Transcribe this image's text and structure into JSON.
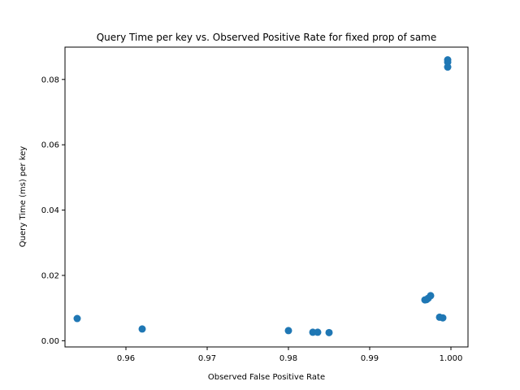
{
  "chart_data": {
    "type": "scatter",
    "title": "Query Time per key vs. Observed Positive Rate for fixed prop of same",
    "xlabel": "Observed False Positive Rate",
    "ylabel": "Query Time (ms) per key",
    "xlim": [
      0.9525,
      1.0021
    ],
    "ylim": [
      -0.0019,
      0.0899
    ],
    "xticks": [
      0.96,
      0.97,
      0.98,
      0.99,
      1.0
    ],
    "xtick_labels": [
      "0.96",
      "0.97",
      "0.98",
      "0.99",
      "1.000"
    ],
    "yticks": [
      0.0,
      0.02,
      0.04,
      0.06,
      0.08
    ],
    "ytick_labels": [
      "0.00",
      "0.02",
      "0.04",
      "0.06",
      "0.08"
    ],
    "grid": false,
    "legend": "none",
    "color": "#1f77b4",
    "points": [
      {
        "x": 0.954,
        "y": 0.0068
      },
      {
        "x": 0.962,
        "y": 0.0036
      },
      {
        "x": 0.98,
        "y": 0.0031
      },
      {
        "x": 0.983,
        "y": 0.0026
      },
      {
        "x": 0.9836,
        "y": 0.0026
      },
      {
        "x": 0.985,
        "y": 0.0025
      },
      {
        "x": 0.9968,
        "y": 0.0125
      },
      {
        "x": 0.997,
        "y": 0.0126
      },
      {
        "x": 0.9972,
        "y": 0.013
      },
      {
        "x": 0.9975,
        "y": 0.0138
      },
      {
        "x": 0.9986,
        "y": 0.0072
      },
      {
        "x": 0.999,
        "y": 0.007
      },
      {
        "x": 0.9996,
        "y": 0.086
      },
      {
        "x": 0.9996,
        "y": 0.0853
      },
      {
        "x": 0.9996,
        "y": 0.0838
      }
    ]
  }
}
